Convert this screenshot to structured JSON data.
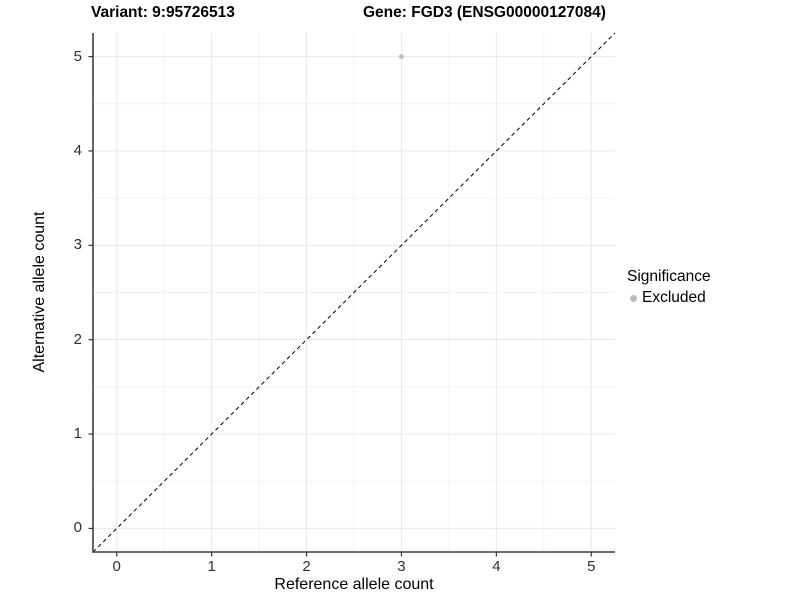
{
  "header": {
    "variant_title": "Variant: 9:95726513",
    "gene_title": "Gene: FGD3 (ENSG00000127084)"
  },
  "chart_data": {
    "type": "scatter",
    "title": "Variant: 9:95726513    Gene: FGD3 (ENSG00000127084)",
    "xlabel": "Reference allele count",
    "ylabel": "Alternative allele count",
    "xlim": [
      -0.25,
      5.25
    ],
    "ylim": [
      -0.25,
      5.25
    ],
    "x_ticks": [
      0,
      1,
      2,
      3,
      4,
      5
    ],
    "y_ticks": [
      0,
      1,
      2,
      3,
      4,
      5
    ],
    "x_tick_labels": [
      "0",
      "1",
      "2",
      "3",
      "4",
      "5"
    ],
    "y_tick_labels": [
      "0",
      "1",
      "2",
      "3",
      "4",
      "5"
    ],
    "x_minor_ticks": [
      0.5,
      1.5,
      2.5,
      3.5,
      4.5
    ],
    "y_minor_ticks": [
      0.5,
      1.5,
      2.5,
      3.5,
      4.5
    ],
    "grid": true,
    "series": [
      {
        "name": "Excluded",
        "color": "#bdbdbd",
        "points": [
          {
            "x": 3,
            "y": 5
          }
        ]
      }
    ],
    "reference_line": {
      "equation": "y = x",
      "style": "dashed",
      "color": "#000000"
    },
    "legend": {
      "title": "Significance",
      "position": "right",
      "items": [
        {
          "label": "Excluded",
          "color": "#bdbdbd"
        }
      ]
    },
    "colors": {
      "background": "#ffffff",
      "grid_major": "#e8e8e8",
      "grid_minor": "#f3f3f3",
      "axis_line": "#3f3f3f",
      "tick_mark": "#333333",
      "point": "#bdbdbd",
      "ref_line": "#000000"
    }
  }
}
